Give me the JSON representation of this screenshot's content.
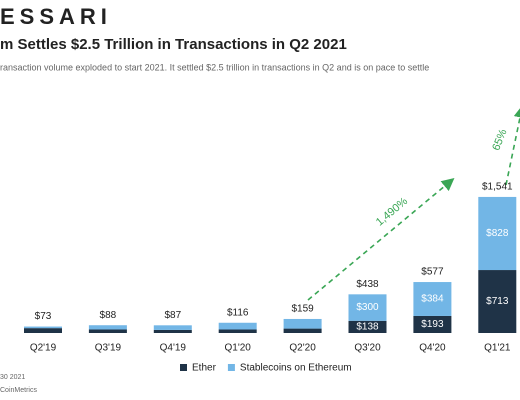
{
  "chart_data": {
    "type": "bar",
    "stacked": true,
    "brand": "ESSARI",
    "title": "m Settles $2.5 Trillion in Transactions in Q2 2021",
    "subtitle": "ransaction volume exploded to start 2021. It settled $2.5 trillion in transactions in Q2 and is on pace to settle",
    "categories": [
      "Q2'19",
      "Q3'19",
      "Q4'19",
      "Q1'20",
      "Q2'20",
      "Q3'20",
      "Q4'20",
      "Q1'21"
    ],
    "series": [
      {
        "name": "Ether",
        "color": "#1f3347",
        "values": [
          55,
          40,
          35,
          40,
          50,
          138,
          193,
          713
        ],
        "value_labels": [
          null,
          null,
          null,
          null,
          null,
          "$138",
          "$193",
          "$713"
        ]
      },
      {
        "name": "Stablecoins on Ethereum",
        "color": "#72b6e6",
        "values": [
          18,
          48,
          52,
          76,
          109,
          300,
          384,
          828
        ],
        "value_labels": [
          null,
          null,
          null,
          null,
          null,
          "$300",
          "$384",
          "$828"
        ]
      }
    ],
    "totals": [
      73,
      88,
      87,
      116,
      159,
      438,
      577,
      1541
    ],
    "total_labels": [
      "$73",
      "$88",
      "$87",
      "$116",
      "$159",
      "$438",
      "$577",
      "$1,541"
    ],
    "annotations": [
      "1,490%",
      "65%"
    ],
    "footnotes": [
      "30 2021",
      "CoinMetrics"
    ]
  }
}
